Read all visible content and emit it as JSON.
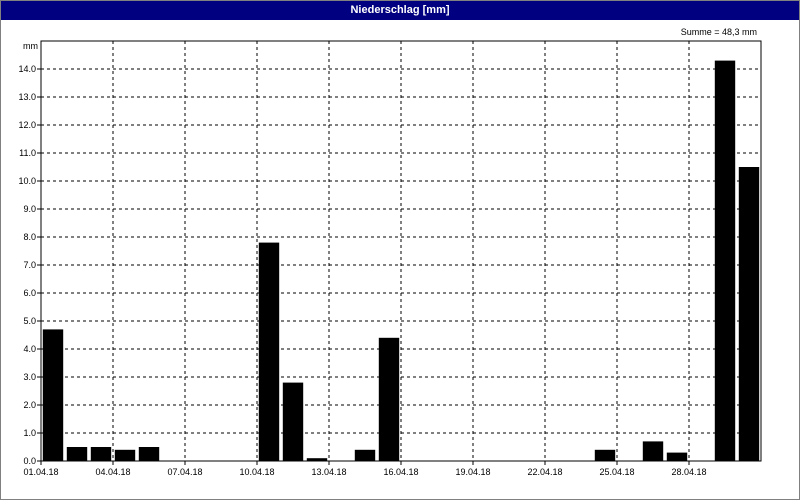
{
  "window": {
    "title": "Niederschlag [mm]"
  },
  "chart_data": {
    "type": "bar",
    "title": "Niederschlag [mm]",
    "ylabel": "mm",
    "annotation": "Summe = 48,3 mm",
    "ylim": [
      0,
      15
    ],
    "grid": true,
    "categories": [
      "01.04.18",
      "02.04.18",
      "03.04.18",
      "04.04.18",
      "05.04.18",
      "06.04.18",
      "07.04.18",
      "08.04.18",
      "09.04.18",
      "10.04.18",
      "11.04.18",
      "12.04.18",
      "13.04.18",
      "14.04.18",
      "15.04.18",
      "16.04.18",
      "17.04.18",
      "18.04.18",
      "19.04.18",
      "20.04.18",
      "21.04.18",
      "22.04.18",
      "23.04.18",
      "24.04.18",
      "25.04.18",
      "26.04.18",
      "27.04.18",
      "28.04.18",
      "29.04.18",
      "30.04.18"
    ],
    "values": [
      4.7,
      0.5,
      0.5,
      0.4,
      0.5,
      0,
      0,
      0,
      0,
      7.8,
      2.8,
      0.1,
      0,
      0.4,
      4.4,
      0,
      0,
      0,
      0,
      0,
      0,
      0,
      0,
      0.4,
      0,
      0.7,
      0.3,
      0,
      14.3,
      10.5
    ],
    "x_tick_labels": [
      "01.04.18",
      "04.04.18",
      "07.04.18",
      "10.04.18",
      "13.04.18",
      "16.04.18",
      "19.04.18",
      "22.04.18",
      "25.04.18",
      "28.04.18"
    ],
    "y_tick_labels": [
      "0.0",
      "1.0",
      "2.0",
      "3.0",
      "4.0",
      "5.0",
      "6.0",
      "7.0",
      "8.0",
      "9.0",
      "10.0",
      "11.0",
      "12.0",
      "13.0",
      "14.0"
    ],
    "bar_color": "#000000"
  }
}
